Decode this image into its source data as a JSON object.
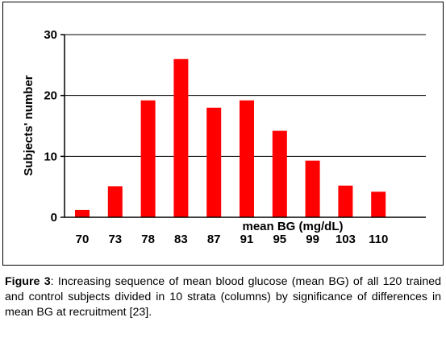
{
  "chart_data": {
    "type": "bar",
    "categories": [
      "70",
      "73",
      "78",
      "83",
      "87",
      "91",
      "95",
      "99",
      "103",
      "110"
    ],
    "values": [
      1.2,
      5.1,
      19.2,
      26,
      18,
      19.2,
      14.2,
      9.3,
      5.2,
      4.2
    ],
    "xlabel": "mean BG (mg/dL)",
    "ylabel": "Subjects' number",
    "ylim": [
      0,
      30
    ],
    "yticks": [
      "0",
      "10",
      "20",
      "30"
    ],
    "grid": true,
    "bar_color": "#ff0000"
  },
  "caption": {
    "label": "Figure 3",
    "text": ": Increasing sequence of mean blood glucose (mean BG) of all 120 trained and control subjects divided in 10 strata (columns) by significance of differences in mean BG at recruitment ",
    "ref": "[23]",
    "end": "."
  }
}
